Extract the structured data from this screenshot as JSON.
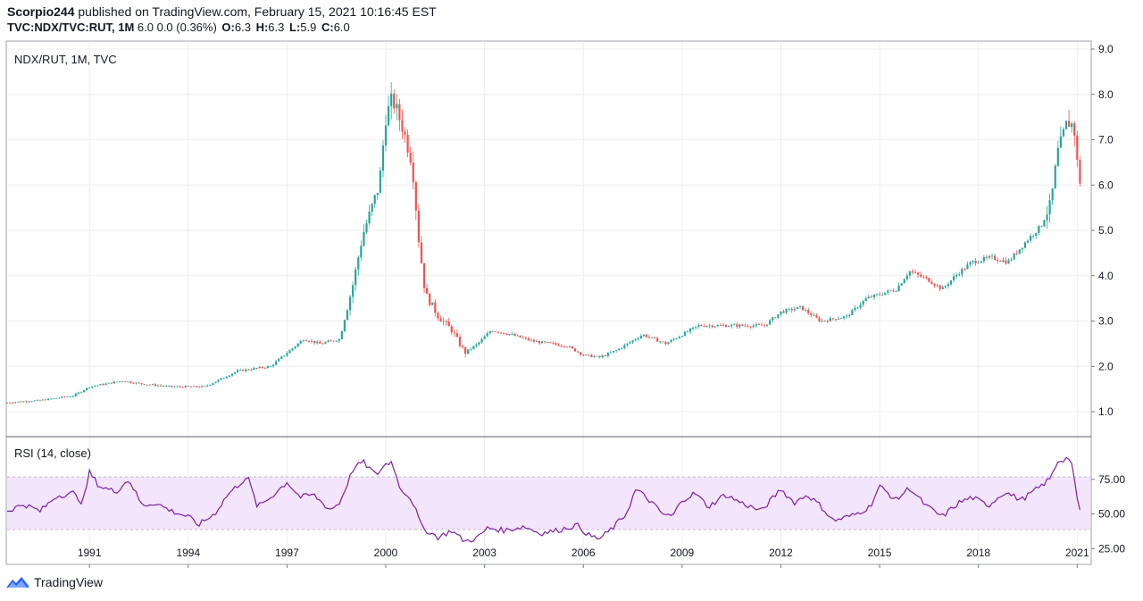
{
  "header": {
    "user": "Scorpio244",
    "published": "published on TradingView.com, February 15, 2021 10:16:45 EST",
    "symbol": "TVC:NDX/TVC:RUT, 1M",
    "change": "6.0  0.0 (0.36%)",
    "o_label": "O:",
    "o_value": "6.3",
    "h_label": "H:",
    "h_value": "6.3",
    "l_label": "L:",
    "l_value": "5.9",
    "c_label": "C:",
    "c_value": "6.0"
  },
  "footer": {
    "brand": "TradingView"
  },
  "colors": {
    "up": "#26a69a",
    "down": "#ef5350",
    "rsi": "#7b1fa2",
    "rsi_band": "#f3e5fb",
    "grid": "#eeeeee",
    "axis": "#787b86"
  },
  "chart_data": [
    {
      "type": "line",
      "subtype": "candlestick",
      "title": "NDX/RUT, 1M, TVC",
      "x_ticks": [
        "1991",
        "1994",
        "1997",
        "2000",
        "2003",
        "2006",
        "2009",
        "2012",
        "2015",
        "2018",
        "2021"
      ],
      "x_range": [
        1988.5,
        2021.1
      ],
      "y_ticks": [
        "9.0",
        "8.0",
        "7.0",
        "6.0",
        "5.0",
        "4.0",
        "3.0",
        "2.0",
        "1.0"
      ],
      "ylim": [
        0.5,
        9.0
      ],
      "close_points": [
        [
          1988.5,
          1.2
        ],
        [
          1989.5,
          1.25
        ],
        [
          1990.5,
          1.35
        ],
        [
          1991.0,
          1.55
        ],
        [
          1992.0,
          1.68
        ],
        [
          1992.5,
          1.62
        ],
        [
          1993.5,
          1.55
        ],
        [
          1994.5,
          1.55
        ],
        [
          1995.5,
          1.9
        ],
        [
          1996.5,
          2.0
        ],
        [
          1997.0,
          2.3
        ],
        [
          1997.5,
          2.6
        ],
        [
          1998.0,
          2.5
        ],
        [
          1998.6,
          2.6
        ],
        [
          1999.0,
          3.8
        ],
        [
          1999.3,
          4.9
        ],
        [
          1999.8,
          6.0
        ],
        [
          2000.0,
          7.5
        ],
        [
          2000.2,
          7.9
        ],
        [
          2000.5,
          7.3
        ],
        [
          2000.8,
          6.5
        ],
        [
          2001.0,
          4.8
        ],
        [
          2001.2,
          3.6
        ],
        [
          2001.6,
          3.1
        ],
        [
          2002.0,
          2.8
        ],
        [
          2002.4,
          2.3
        ],
        [
          2002.8,
          2.5
        ],
        [
          2003.2,
          2.8
        ],
        [
          2003.8,
          2.7
        ],
        [
          2004.5,
          2.55
        ],
        [
          2005.5,
          2.45
        ],
        [
          2006.0,
          2.25
        ],
        [
          2006.5,
          2.2
        ],
        [
          2007.0,
          2.35
        ],
        [
          2007.8,
          2.7
        ],
        [
          2008.5,
          2.5
        ],
        [
          2009.0,
          2.7
        ],
        [
          2009.5,
          2.9
        ],
        [
          2010.5,
          2.9
        ],
        [
          2011.5,
          2.9
        ],
        [
          2012.0,
          3.2
        ],
        [
          2012.6,
          3.3
        ],
        [
          2013.2,
          3.0
        ],
        [
          2014.0,
          3.1
        ],
        [
          2014.6,
          3.5
        ],
        [
          2015.5,
          3.7
        ],
        [
          2015.9,
          4.1
        ],
        [
          2016.5,
          3.9
        ],
        [
          2016.9,
          3.7
        ],
        [
          2017.3,
          4.0
        ],
        [
          2017.8,
          4.3
        ],
        [
          2018.4,
          4.4
        ],
        [
          2018.9,
          4.3
        ],
        [
          2019.5,
          4.8
        ],
        [
          2019.9,
          5.1
        ],
        [
          2020.2,
          5.6
        ],
        [
          2020.4,
          6.7
        ],
        [
          2020.7,
          7.4
        ],
        [
          2020.9,
          7.3
        ],
        [
          2021.0,
          6.5
        ],
        [
          2021.1,
          6.0
        ]
      ]
    },
    {
      "type": "line",
      "title": "RSI (14, close)",
      "y_ticks": [
        "75.00",
        "50.00",
        "25.00"
      ],
      "ylim": [
        20,
        100
      ],
      "band": [
        30,
        70
      ],
      "points": [
        [
          1988.5,
          52
        ],
        [
          1989.0,
          57
        ],
        [
          1989.5,
          52
        ],
        [
          1990.0,
          63
        ],
        [
          1990.5,
          65
        ],
        [
          1990.8,
          58
        ],
        [
          1991.0,
          80
        ],
        [
          1991.3,
          70
        ],
        [
          1991.8,
          66
        ],
        [
          1992.2,
          75
        ],
        [
          1992.6,
          56
        ],
        [
          1993.0,
          58
        ],
        [
          1993.5,
          52
        ],
        [
          1994.0,
          48
        ],
        [
          1994.3,
          42
        ],
        [
          1994.8,
          50
        ],
        [
          1995.2,
          64
        ],
        [
          1995.8,
          77
        ],
        [
          1996.1,
          55
        ],
        [
          1996.5,
          62
        ],
        [
          1997.0,
          73
        ],
        [
          1997.4,
          62
        ],
        [
          1997.8,
          64
        ],
        [
          1998.3,
          53
        ],
        [
          1998.6,
          58
        ],
        [
          1999.0,
          82
        ],
        [
          1999.3,
          88
        ],
        [
          1999.7,
          78
        ],
        [
          2000.0,
          86
        ],
        [
          2000.2,
          88
        ],
        [
          2000.4,
          70
        ],
        [
          2000.8,
          60
        ],
        [
          2001.1,
          40
        ],
        [
          2001.6,
          33
        ],
        [
          2002.0,
          38
        ],
        [
          2002.4,
          30
        ],
        [
          2002.8,
          33
        ],
        [
          2003.1,
          40
        ],
        [
          2003.6,
          38
        ],
        [
          2004.2,
          41
        ],
        [
          2004.7,
          36
        ],
        [
          2005.2,
          38
        ],
        [
          2005.8,
          42
        ],
        [
          2006.2,
          34
        ],
        [
          2006.5,
          32
        ],
        [
          2006.9,
          40
        ],
        [
          2007.3,
          50
        ],
        [
          2007.6,
          68
        ],
        [
          2008.0,
          60
        ],
        [
          2008.4,
          50
        ],
        [
          2008.7,
          48
        ],
        [
          2009.0,
          60
        ],
        [
          2009.4,
          65
        ],
        [
          2009.8,
          55
        ],
        [
          2010.3,
          64
        ],
        [
          2010.8,
          58
        ],
        [
          2011.4,
          52
        ],
        [
          2012.0,
          68
        ],
        [
          2012.4,
          58
        ],
        [
          2012.8,
          64
        ],
        [
          2013.2,
          56
        ],
        [
          2013.6,
          45
        ],
        [
          2014.2,
          49
        ],
        [
          2014.7,
          55
        ],
        [
          2015.0,
          70
        ],
        [
          2015.5,
          60
        ],
        [
          2015.9,
          69
        ],
        [
          2016.4,
          56
        ],
        [
          2016.9,
          48
        ],
        [
          2017.4,
          58
        ],
        [
          2017.8,
          62
        ],
        [
          2018.3,
          56
        ],
        [
          2018.8,
          66
        ],
        [
          2019.3,
          60
        ],
        [
          2019.9,
          70
        ],
        [
          2020.2,
          76
        ],
        [
          2020.4,
          88
        ],
        [
          2020.8,
          91
        ],
        [
          2021.0,
          60
        ],
        [
          2021.1,
          52
        ]
      ]
    }
  ]
}
